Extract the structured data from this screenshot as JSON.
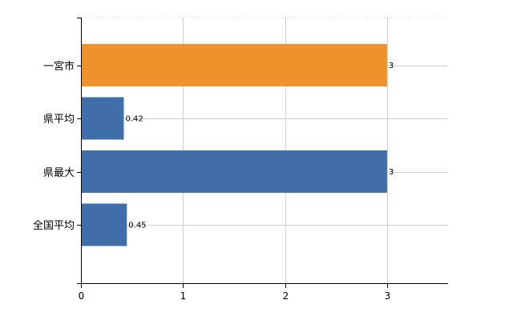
{
  "chart_data": {
    "type": "bar",
    "orientation": "horizontal",
    "categories": [
      "一宮市",
      "県平均",
      "県最大",
      "全国平均"
    ],
    "values": [
      3,
      0.42,
      3,
      0.45
    ],
    "data_labels": [
      "3",
      "0.42",
      "3",
      "0.45"
    ],
    "bar_colors": [
      "#f0922b",
      "#3f6ea8",
      "#3f6ea8",
      "#3f6ea8"
    ],
    "x_ticks": [
      0,
      1,
      2,
      3
    ],
    "xlim": [
      0,
      3.6
    ],
    "grid": true,
    "title": "",
    "xlabel": "",
    "ylabel": ""
  },
  "colors": {
    "highlight": "#f0922b",
    "bar": "#3f6ea8",
    "grid": "#d0d0d0",
    "axis": "#000000"
  }
}
